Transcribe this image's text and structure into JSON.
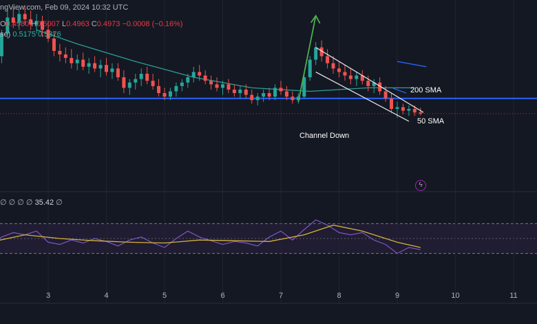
{
  "header": {
    "source_line": "ngView.com, Feb 09, 2024 10:32 UTC",
    "ohlc_prefix": "O",
    "ohlc_open_value": "0.4980",
    "ohlc_high_label": "H",
    "ohlc_high_value": "0.5007",
    "ohlc_low_label": "L",
    "ohlc_low_value": "0.4963",
    "ohlc_close_label": "C",
    "ohlc_close_value": "0.4973",
    "ohlc_change": "−0.0008 (−0.16%)",
    "indicator_label": "se)",
    "indicator_value_1": "0.5175",
    "indicator_value_2": "0.5376"
  },
  "rsi_header": {
    "glyphs": "∅ ∅ ∅ ∅",
    "value": "35.42",
    "tail": "∅"
  },
  "annotations": {
    "sma200": "200 SMA",
    "sma50": "50 SMA",
    "channel": "Channel Down"
  },
  "colors": {
    "background": "#141822",
    "up": "#26a69a",
    "down": "#ef5350",
    "sma50": "#2a9d97",
    "sma200": "#2962ff",
    "support": "#2962ff",
    "channel": "#ffffff",
    "arrow": "#4caf50",
    "rsi": "#7e57c2",
    "rsi_ma": "#d4b43a"
  },
  "chart_data": {
    "type": "candlestick",
    "x_axis_ticks": [
      "3",
      "4",
      "5",
      "6",
      "7",
      "8",
      "9",
      "10",
      "11"
    ],
    "price_range": [
      0.46,
      0.56
    ],
    "support_level": 0.506,
    "current_level": 0.4973,
    "candles": [
      [
        2.2,
        0.53,
        0.545,
        0.526,
        0.543
      ],
      [
        2.3,
        0.543,
        0.556,
        0.54,
        0.552
      ],
      [
        2.4,
        0.552,
        0.558,
        0.546,
        0.549
      ],
      [
        2.5,
        0.549,
        0.557,
        0.545,
        0.554
      ],
      [
        2.6,
        0.554,
        0.559,
        0.548,
        0.551
      ],
      [
        2.7,
        0.551,
        0.556,
        0.545,
        0.548
      ],
      [
        2.8,
        0.548,
        0.554,
        0.543,
        0.55
      ],
      [
        2.9,
        0.55,
        0.553,
        0.541,
        0.545
      ],
      [
        3.0,
        0.545,
        0.55,
        0.538,
        0.54
      ],
      [
        3.1,
        0.54,
        0.544,
        0.53,
        0.533
      ],
      [
        3.2,
        0.533,
        0.537,
        0.527,
        0.531
      ],
      [
        3.3,
        0.531,
        0.535,
        0.526,
        0.529
      ],
      [
        3.4,
        0.529,
        0.534,
        0.523,
        0.526
      ],
      [
        3.5,
        0.526,
        0.531,
        0.522,
        0.528
      ],
      [
        3.6,
        0.528,
        0.532,
        0.522,
        0.524
      ],
      [
        3.7,
        0.524,
        0.529,
        0.52,
        0.526
      ],
      [
        3.8,
        0.526,
        0.53,
        0.521,
        0.523
      ],
      [
        3.9,
        0.523,
        0.528,
        0.518,
        0.525
      ],
      [
        4.0,
        0.525,
        0.529,
        0.519,
        0.521
      ],
      [
        4.1,
        0.521,
        0.526,
        0.517,
        0.523
      ],
      [
        4.2,
        0.523,
        0.526,
        0.516,
        0.518
      ],
      [
        4.3,
        0.518,
        0.522,
        0.509,
        0.512
      ],
      [
        4.4,
        0.512,
        0.517,
        0.508,
        0.515
      ],
      [
        4.5,
        0.515,
        0.52,
        0.511,
        0.517
      ],
      [
        4.6,
        0.517,
        0.523,
        0.513,
        0.52
      ],
      [
        4.7,
        0.52,
        0.524,
        0.514,
        0.516
      ],
      [
        4.8,
        0.516,
        0.52,
        0.511,
        0.513
      ],
      [
        4.9,
        0.513,
        0.517,
        0.507,
        0.509
      ],
      [
        5.0,
        0.509,
        0.512,
        0.505,
        0.507
      ],
      [
        5.1,
        0.507,
        0.512,
        0.505,
        0.51
      ],
      [
        5.2,
        0.51,
        0.515,
        0.507,
        0.513
      ],
      [
        5.3,
        0.513,
        0.517,
        0.51,
        0.515
      ],
      [
        5.4,
        0.515,
        0.52,
        0.512,
        0.518
      ],
      [
        5.5,
        0.518,
        0.524,
        0.515,
        0.521
      ],
      [
        5.6,
        0.521,
        0.525,
        0.516,
        0.519
      ],
      [
        5.7,
        0.519,
        0.522,
        0.514,
        0.516
      ],
      [
        5.8,
        0.516,
        0.519,
        0.511,
        0.514
      ],
      [
        5.9,
        0.514,
        0.518,
        0.51,
        0.512
      ],
      [
        6.0,
        0.512,
        0.516,
        0.508,
        0.514
      ],
      [
        6.1,
        0.514,
        0.517,
        0.509,
        0.511
      ],
      [
        6.2,
        0.511,
        0.514,
        0.507,
        0.509
      ],
      [
        6.3,
        0.509,
        0.513,
        0.506,
        0.511
      ],
      [
        6.4,
        0.511,
        0.514,
        0.506,
        0.508
      ],
      [
        6.5,
        0.508,
        0.511,
        0.503,
        0.505
      ],
      [
        6.6,
        0.505,
        0.509,
        0.502,
        0.507
      ],
      [
        6.7,
        0.507,
        0.511,
        0.504,
        0.509
      ],
      [
        6.8,
        0.509,
        0.512,
        0.505,
        0.507
      ],
      [
        6.9,
        0.507,
        0.514,
        0.505,
        0.512
      ],
      [
        7.0,
        0.512,
        0.516,
        0.508,
        0.51
      ],
      [
        7.1,
        0.51,
        0.513,
        0.505,
        0.507
      ],
      [
        7.2,
        0.507,
        0.51,
        0.503,
        0.505
      ],
      [
        7.3,
        0.505,
        0.509,
        0.503,
        0.507
      ],
      [
        7.4,
        0.507,
        0.52,
        0.506,
        0.518
      ],
      [
        7.5,
        0.518,
        0.53,
        0.516,
        0.528
      ],
      [
        7.6,
        0.528,
        0.538,
        0.525,
        0.535
      ],
      [
        7.7,
        0.535,
        0.539,
        0.527,
        0.53
      ],
      [
        7.8,
        0.53,
        0.534,
        0.523,
        0.526
      ],
      [
        7.9,
        0.526,
        0.53,
        0.52,
        0.523
      ],
      [
        8.0,
        0.523,
        0.527,
        0.518,
        0.521
      ],
      [
        8.1,
        0.521,
        0.525,
        0.516,
        0.519
      ],
      [
        8.2,
        0.519,
        0.523,
        0.514,
        0.517
      ],
      [
        8.3,
        0.517,
        0.521,
        0.513,
        0.519
      ],
      [
        8.4,
        0.519,
        0.522,
        0.514,
        0.516
      ],
      [
        8.5,
        0.516,
        0.519,
        0.51,
        0.513
      ],
      [
        8.6,
        0.513,
        0.517,
        0.509,
        0.515
      ],
      [
        8.7,
        0.515,
        0.518,
        0.508,
        0.51
      ],
      [
        8.8,
        0.51,
        0.513,
        0.504,
        0.506
      ],
      [
        8.9,
        0.506,
        0.509,
        0.498,
        0.5
      ],
      [
        9.0,
        0.5,
        0.504,
        0.495,
        0.501
      ],
      [
        9.1,
        0.501,
        0.503,
        0.497,
        0.499
      ],
      [
        9.2,
        0.499,
        0.502,
        0.496,
        0.5
      ],
      [
        9.3,
        0.5,
        0.502,
        0.496,
        0.498
      ],
      [
        9.4,
        0.498,
        0.5007,
        0.4963,
        0.4973
      ]
    ],
    "sma50": [
      [
        2.8,
        0.545
      ],
      [
        3.5,
        0.537
      ],
      [
        4.5,
        0.527
      ],
      [
        5.5,
        0.518
      ],
      [
        6.5,
        0.512
      ],
      [
        7.5,
        0.51
      ],
      [
        8.5,
        0.512
      ],
      [
        9.3,
        0.512
      ]
    ],
    "sma200_segment": [
      [
        9.0,
        0.527
      ],
      [
        9.5,
        0.524
      ]
    ],
    "channel_upper": [
      [
        7.6,
        0.535
      ],
      [
        9.45,
        0.498
      ]
    ],
    "channel_lower": [
      [
        7.6,
        0.521
      ],
      [
        9.2,
        0.493
      ]
    ],
    "rsi_range": [
      0,
      100
    ],
    "rsi_upper_band": 70,
    "rsi_lower_band": 30,
    "rsi": [
      [
        2.0,
        40
      ],
      [
        2.2,
        52
      ],
      [
        2.4,
        58
      ],
      [
        2.6,
        55
      ],
      [
        2.8,
        60
      ],
      [
        3.0,
        45
      ],
      [
        3.2,
        42
      ],
      [
        3.4,
        48
      ],
      [
        3.6,
        44
      ],
      [
        3.8,
        50
      ],
      [
        4.0,
        46
      ],
      [
        4.2,
        40
      ],
      [
        4.4,
        48
      ],
      [
        4.6,
        52
      ],
      [
        4.8,
        44
      ],
      [
        5.0,
        38
      ],
      [
        5.2,
        50
      ],
      [
        5.4,
        60
      ],
      [
        5.6,
        52
      ],
      [
        5.8,
        47
      ],
      [
        6.0,
        42
      ],
      [
        6.2,
        46
      ],
      [
        6.4,
        44
      ],
      [
        6.6,
        40
      ],
      [
        6.8,
        52
      ],
      [
        7.0,
        60
      ],
      [
        7.2,
        48
      ],
      [
        7.4,
        62
      ],
      [
        7.6,
        75
      ],
      [
        7.8,
        68
      ],
      [
        8.0,
        58
      ],
      [
        8.2,
        55
      ],
      [
        8.4,
        58
      ],
      [
        8.6,
        48
      ],
      [
        8.8,
        42
      ],
      [
        9.0,
        30
      ],
      [
        9.2,
        38
      ],
      [
        9.4,
        35
      ]
    ],
    "rsi_ma": [
      [
        2.0,
        45
      ],
      [
        2.6,
        55
      ],
      [
        3.2,
        50
      ],
      [
        3.8,
        47
      ],
      [
        4.4,
        45
      ],
      [
        5.0,
        44
      ],
      [
        5.6,
        48
      ],
      [
        6.2,
        47
      ],
      [
        6.8,
        46
      ],
      [
        7.4,
        55
      ],
      [
        7.9,
        68
      ],
      [
        8.4,
        60
      ],
      [
        9.0,
        45
      ],
      [
        9.4,
        38
      ]
    ]
  }
}
